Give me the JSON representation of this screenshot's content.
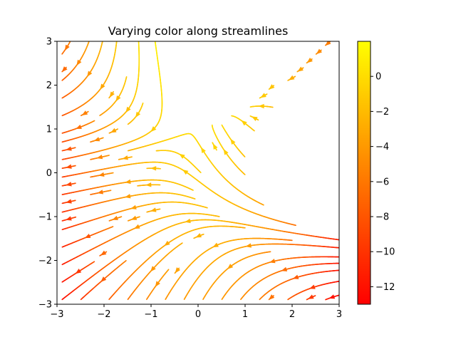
{
  "chart_data": {
    "type": "streamplot",
    "title": "Varying color along streamlines",
    "xlabel": "",
    "ylabel": "",
    "xlim": [
      -3,
      3
    ],
    "ylim": [
      -3,
      3
    ],
    "xticks": [
      -3,
      -2,
      -1,
      0,
      1,
      2,
      3
    ],
    "yticks": [
      -3,
      -2,
      -1,
      0,
      1,
      2,
      3
    ],
    "xtick_labels": [
      "−3",
      "−2",
      "−1",
      "0",
      "1",
      "2",
      "3"
    ],
    "ytick_labels": [
      "−3",
      "−2",
      "−1",
      "0",
      "1",
      "2",
      "3"
    ],
    "field": {
      "U": "-1 - x^2 + y",
      "V": "1 + x - y^2",
      "color_by": "U"
    },
    "colormap": "autumn",
    "colorbar": {
      "range": [
        -13,
        2
      ],
      "ticks": [
        0,
        -2,
        -4,
        -6,
        -8,
        -10,
        -12
      ],
      "tick_labels": [
        "0",
        "−2",
        "−4",
        "−6",
        "−8",
        "−10",
        "−12"
      ],
      "low_color": "#ff0000",
      "high_color": "#ffff00"
    },
    "grid": false
  }
}
